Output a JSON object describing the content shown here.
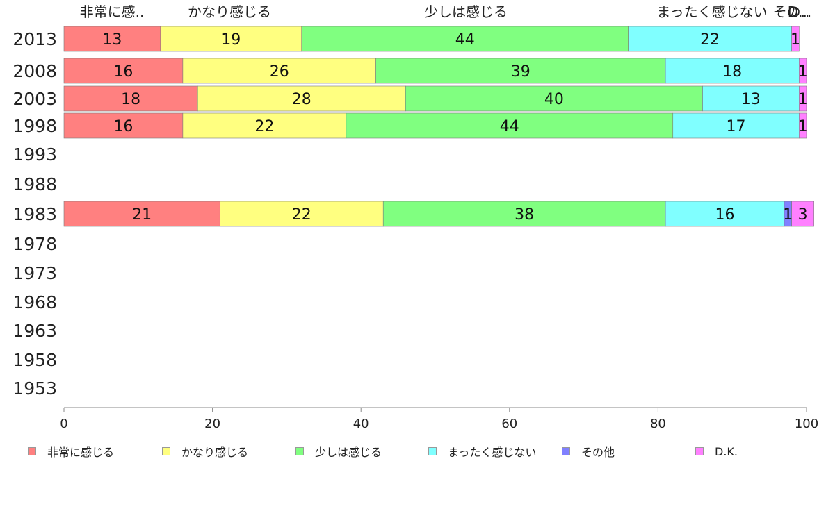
{
  "chart_data": {
    "type": "bar",
    "orientation": "horizontal",
    "stacked": true,
    "categories": [
      "2013",
      "2008",
      "2003",
      "1998",
      "1993",
      "1988",
      "1983",
      "1978",
      "1973",
      "1968",
      "1963",
      "1958",
      "1953"
    ],
    "series": [
      {
        "name": "非常に感じる",
        "color": "#ff8080",
        "values": [
          13,
          16,
          18,
          16,
          null,
          null,
          21,
          null,
          null,
          null,
          null,
          null,
          null
        ]
      },
      {
        "name": "かなり感じる",
        "color": "#ffff80",
        "values": [
          19,
          26,
          28,
          22,
          null,
          null,
          22,
          null,
          null,
          null,
          null,
          null,
          null
        ]
      },
      {
        "name": "少しは感じる",
        "color": "#80ff80",
        "values": [
          44,
          39,
          40,
          44,
          null,
          null,
          38,
          null,
          null,
          null,
          null,
          null,
          null
        ]
      },
      {
        "name": "まったく感じない",
        "color": "#80ffff",
        "values": [
          22,
          18,
          13,
          17,
          null,
          null,
          16,
          null,
          null,
          null,
          null,
          null,
          null
        ]
      },
      {
        "name": "その他",
        "color": "#8080ff",
        "values": [
          0,
          0,
          0,
          0,
          null,
          null,
          1,
          null,
          null,
          null,
          null,
          null,
          null
        ]
      },
      {
        "name": "D.K.",
        "color": "#ff80ff",
        "values": [
          1,
          1,
          1,
          1,
          null,
          null,
          3,
          null,
          null,
          null,
          null,
          null,
          null
        ]
      }
    ],
    "top_labels": [
      "非常に感..",
      "かなり感じる",
      "少しは感じる",
      "まったく感じない",
      "その..",
      "D..."
    ],
    "x_ticks": [
      "0",
      "20",
      "40",
      "60",
      "80",
      "100"
    ],
    "xlim": [
      0,
      100
    ],
    "grid": false,
    "legend_position": "bottom"
  }
}
